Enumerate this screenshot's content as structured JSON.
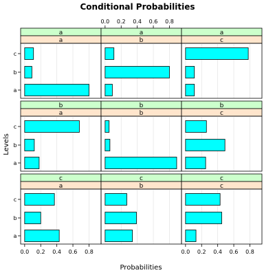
{
  "chart_data": {
    "type": "bar",
    "orientation": "horizontal",
    "title": "Conditional Probabilities",
    "xlabel": "Probabilities",
    "ylabel": "Levels",
    "xlim": [
      -0.05,
      0.95
    ],
    "xticks": [
      0.0,
      0.2,
      0.4,
      0.6,
      0.8
    ],
    "xtick_labels": [
      "0.0",
      "0.2",
      "0.4",
      "0.6",
      "0.8"
    ],
    "levels": [
      "a",
      "b",
      "c"
    ],
    "grid": "vertical",
    "strip_colors": {
      "outer": "#ccffcc",
      "inner": "#ffe5cc"
    },
    "bar_color": "#00ffff",
    "panels": [
      {
        "outer": "a",
        "inner": "a",
        "values": {
          "a": 0.8,
          "b": 0.09,
          "c": 0.11
        }
      },
      {
        "outer": "a",
        "inner": "b",
        "values": {
          "a": 0.09,
          "b": 0.8,
          "c": 0.11
        }
      },
      {
        "outer": "a",
        "inner": "c",
        "values": {
          "a": 0.11,
          "b": 0.11,
          "c": 0.78
        }
      },
      {
        "outer": "b",
        "inner": "a",
        "values": {
          "a": 0.18,
          "b": 0.12,
          "c": 0.68
        }
      },
      {
        "outer": "b",
        "inner": "b",
        "values": {
          "a": 0.89,
          "b": 0.06,
          "c": 0.05
        }
      },
      {
        "outer": "b",
        "inner": "c",
        "values": {
          "a": 0.25,
          "b": 0.49,
          "c": 0.26
        }
      },
      {
        "outer": "c",
        "inner": "a",
        "values": {
          "a": 0.43,
          "b": 0.2,
          "c": 0.37
        }
      },
      {
        "outer": "c",
        "inner": "b",
        "values": {
          "a": 0.34,
          "b": 0.39,
          "c": 0.27
        }
      },
      {
        "outer": "c",
        "inner": "c",
        "values": {
          "a": 0.13,
          "b": 0.45,
          "c": 0.43
        }
      }
    ]
  }
}
